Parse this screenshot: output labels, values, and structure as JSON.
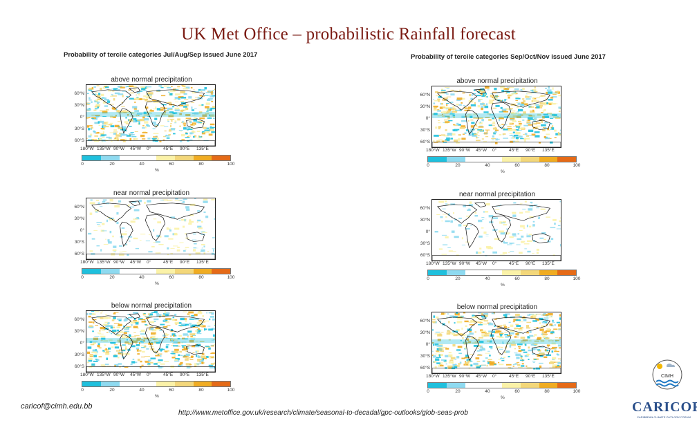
{
  "slide": {
    "title": "UK Met Office –  probabilistic Rainfall  forecast",
    "email": "caricof@cimh.edu.bb",
    "url": "http://www.metoffice.gov.uk/research/climate/seasonal-to-decadal/gpc-outlooks/glob-seas-prob"
  },
  "columns": [
    {
      "title": "Probability of tercile categories Jul/Aug/Sep issued June 2017"
    },
    {
      "title": "Probability of tercile categories Sep/Oct/Nov issued June 2017"
    }
  ],
  "panels": [
    {
      "title": "above normal precipitation"
    },
    {
      "title": "near normal precipitation"
    },
    {
      "title": "below normal precipitation"
    }
  ],
  "map_axes": {
    "lat_labels": [
      "60°N",
      "30°N",
      "0°",
      "30°S",
      "60°S"
    ],
    "lon_labels": [
      "180°W",
      "135°W",
      "90°W",
      "45°W",
      "0°",
      "45°E",
      "90°E",
      "135°E"
    ]
  },
  "colorbar": {
    "ticks": [
      "0",
      "20",
      "40",
      "60",
      "80",
      "100"
    ],
    "unit": "%",
    "colors": [
      "#1fc0dd",
      "#8edaf0",
      "#ffffff",
      "#ffffff",
      "#fbf2a8",
      "#f3d77a",
      "#f0ac22",
      "#e56a17"
    ]
  },
  "logos": {
    "cimh": "CIMH",
    "caricof_name": "CARICOF",
    "caricof_sub": "CARIBBEAN CLIMATE OUTLOOK FORUM"
  }
}
